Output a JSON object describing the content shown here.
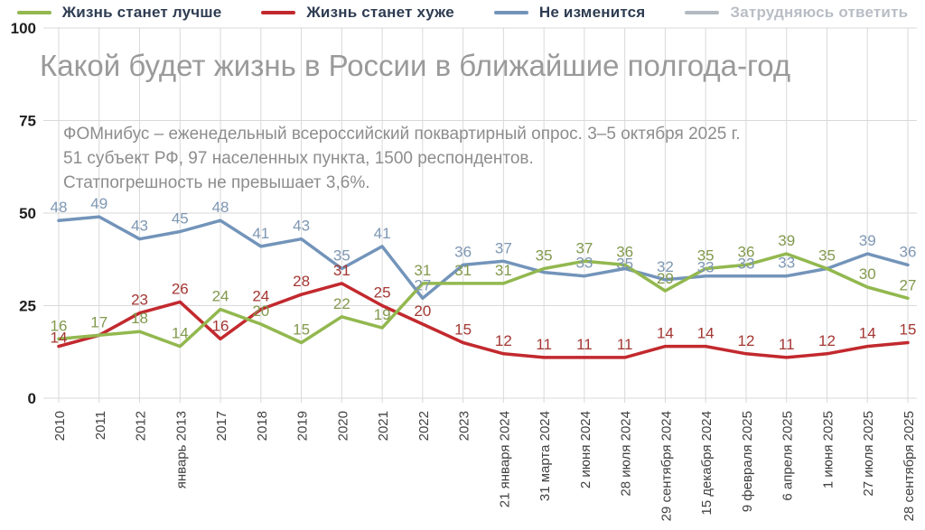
{
  "title": {
    "text": "Какой будет жизнь в России в ближайшие полгода-год"
  },
  "subtitle": {
    "lines": [
      "ФОМнибус – еженедельный всероссийский поквартирный опрос. 3–5 октября 2025 г.",
      "51 субъект РФ, 97 населенных пункта, 1500 респондентов.",
      "Статпогрешность не превышает 3,6%."
    ]
  },
  "legend": {
    "items": [
      {
        "label": "Жизнь станет лучше",
        "swatch_color": "#92b84f",
        "text_color": "#2e3c52",
        "active": true
      },
      {
        "label": "Жизнь станет хуже",
        "swatch_color": "#c2292e",
        "text_color": "#2e3c52",
        "active": true
      },
      {
        "label": "Не изменится",
        "swatch_color": "#7394ba",
        "text_color": "#2e3c52",
        "active": true
      },
      {
        "label": "Затрудняюсь ответить",
        "swatch_color": "#b3bac1",
        "text_color": "#b8bec5",
        "active": false
      }
    ]
  },
  "chart_data": {
    "type": "line",
    "title": "Какой будет жизнь в России в ближайшие полгода-год",
    "categories": [
      "2010",
      "2011",
      "2012",
      "январь 2013",
      "2017",
      "2018",
      "2019",
      "2020",
      "2021",
      "2022",
      "2023",
      "21 января 2024",
      "31 марта 2024",
      "2 июня 2024",
      "28 июля 2024",
      "29 сентября 2024",
      "15 декабря 2024",
      "9 февраля 2025",
      "6 апреля 2025",
      "1 июня 2025",
      "27 июля 2025",
      "28 сентября 2025"
    ],
    "series": [
      {
        "name": "Не изменится",
        "color": "#7394ba",
        "label_color": "#7e97b3",
        "values": [
          48,
          49,
          43,
          45,
          48,
          41,
          43,
          35,
          41,
          27,
          36,
          37,
          34,
          33,
          35,
          32,
          33,
          33,
          33,
          35,
          39,
          36
        ],
        "labels": [
          48,
          49,
          43,
          45,
          48,
          41,
          43,
          35,
          41,
          27,
          36,
          37,
          null,
          33,
          35,
          32,
          33,
          33,
          33,
          null,
          39,
          36
        ]
      },
      {
        "name": "Жизнь станет хуже",
        "color": "#c2292e",
        "label_color": "#a33733",
        "values": [
          14,
          17,
          23,
          26,
          16,
          24,
          28,
          31,
          25,
          20,
          15,
          12,
          11,
          11,
          11,
          14,
          14,
          12,
          11,
          12,
          14,
          15
        ],
        "labels": [
          14,
          null,
          23,
          26,
          16,
          24,
          28,
          31,
          25,
          20,
          15,
          12,
          11,
          11,
          11,
          14,
          14,
          12,
          11,
          12,
          14,
          15
        ]
      },
      {
        "name": "Жизнь станет лучше",
        "color": "#92b84f",
        "label_color": "#82994d",
        "values": [
          16,
          17,
          18,
          14,
          24,
          20,
          15,
          22,
          19,
          31,
          31,
          31,
          35,
          37,
          36,
          29,
          35,
          36,
          39,
          35,
          30,
          27
        ],
        "labels": [
          16,
          17,
          18,
          14,
          24,
          20,
          15,
          22,
          19,
          31,
          31,
          31,
          35,
          37,
          36,
          29,
          35,
          36,
          39,
          35,
          30,
          27
        ]
      }
    ],
    "ylabel": "",
    "xlabel": "",
    "ylim": [
      0,
      100
    ],
    "yticks": [
      0,
      25,
      50,
      75,
      100
    ],
    "grid": true,
    "legend_position": "top",
    "grid_color": "#d9d9d9",
    "ytick_color": "#1f1f1f",
    "xtick_color": "#414141"
  }
}
